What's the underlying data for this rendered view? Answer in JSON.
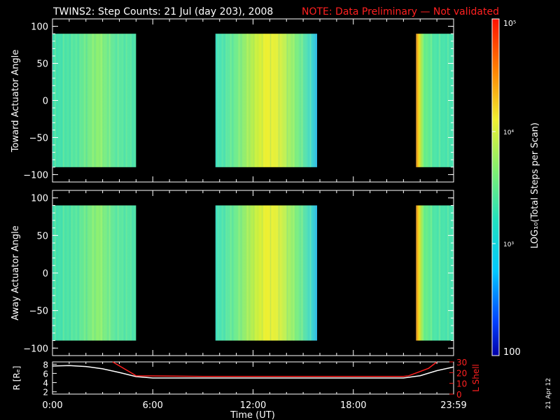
{
  "title": {
    "main": "TWINS2: Step Counts: 21 Jul (day 203), 2008",
    "note": "NOTE: Data Preliminary — Not validated",
    "note_color": "#ff2020"
  },
  "side_date": "21 Apr 12",
  "chart_data": [
    {
      "type": "heatmap",
      "ylabel": "Toward Actuator Angle",
      "ylim": [
        -110,
        110
      ],
      "y_ticks": [
        "100",
        "50",
        "0",
        "−50",
        "−100"
      ],
      "xlim_hours": [
        0,
        24
      ],
      "data_y_range": [
        -90,
        90
      ],
      "segments": [
        {
          "start": "0:00",
          "end": "5:00",
          "level": "cyan-green"
        },
        {
          "start": "9:45",
          "end": "15:50",
          "level": "green-yellow"
        },
        {
          "start": "21:45",
          "end": "23:59",
          "level": "cyan-green, orange edge"
        }
      ]
    },
    {
      "type": "heatmap",
      "ylabel": "Away Actuator Angle",
      "ylim": [
        -110,
        110
      ],
      "y_ticks": [
        "100",
        "50",
        "0",
        "−50",
        "−100"
      ],
      "xlim_hours": [
        0,
        24
      ],
      "data_y_range": [
        -90,
        90
      ],
      "segments": [
        {
          "start": "0:00",
          "end": "5:00",
          "level": "cyan-green"
        },
        {
          "start": "9:45",
          "end": "15:50",
          "level": "green-yellow"
        },
        {
          "start": "21:45",
          "end": "23:59",
          "level": "cyan-green, orange edge"
        }
      ]
    },
    {
      "type": "line",
      "ylabel_left": "R [Rₑ]",
      "ylabel_right": "L Shell",
      "left_ticks": [
        "8",
        "6",
        "4",
        "2"
      ],
      "right_ticks": [
        "30",
        "20",
        "10",
        "0"
      ],
      "left_ylim": [
        1.5,
        8.5
      ],
      "right_ylim": [
        0,
        30
      ],
      "xlabel": "Time (UT)",
      "x_ticks": [
        "0:00",
        "6:00",
        "12:00",
        "18:00",
        "23:59"
      ],
      "series": [
        {
          "color": "#ffffff",
          "x_hours": [
            0,
            1,
            2,
            3,
            4,
            5,
            6,
            9,
            12,
            15,
            18,
            21,
            22,
            23,
            24
          ],
          "values": [
            7.6,
            7.7,
            7.5,
            7.0,
            6.2,
            5.3,
            5.0,
            5.0,
            5.0,
            5.0,
            5.0,
            5.0,
            5.5,
            6.6,
            7.4
          ]
        },
        {
          "color": "#ff2020",
          "axis": "right",
          "x_hours": [
            3.6,
            4.8,
            5.0,
            9,
            12,
            15,
            18,
            21,
            21.3,
            22.5,
            23.0
          ],
          "values": [
            30,
            19,
            17,
            16.5,
            16.5,
            16.5,
            16.5,
            16.5,
            17,
            24,
            30
          ]
        }
      ]
    }
  ],
  "colorbar": {
    "label": "LOG₁₀(Total Steps per Scan)",
    "tick_top": "10⁵",
    "tick_mid1": "10⁴",
    "tick_mid2": "10³",
    "tick_bottom": "100"
  }
}
